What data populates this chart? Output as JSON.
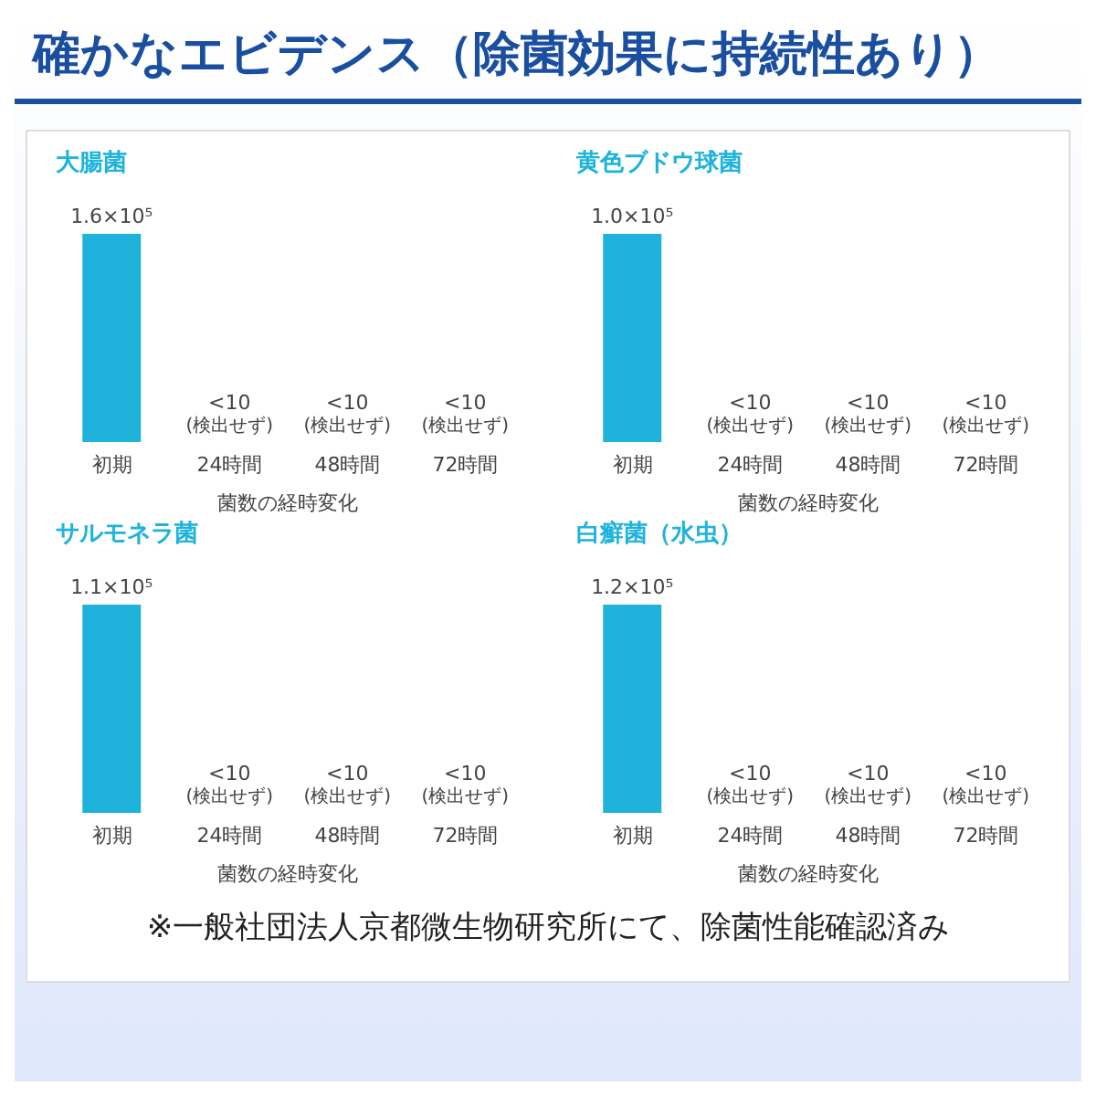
{
  "chart_data": [
    {
      "type": "other",
      "title": "確かなエビデンス（除菌効果に持続性あり）"
    },
    {
      "type": "bar",
      "title": "大腸菌",
      "xlabel": "菌数の経時変化",
      "categories": [
        "初期",
        "24時間",
        "48時間",
        "72時間"
      ],
      "values": [
        160000,
        10,
        10,
        10
      ],
      "value_labels": [
        "1.6×10⁵",
        "<10 (検出せず)",
        "<10 (検出せず)",
        "<10 (検出せず)"
      ],
      "color": "#1fb3dc",
      "grid": false,
      "legend": false
    },
    {
      "type": "bar",
      "title": "黄色ブドウ球菌",
      "xlabel": "菌数の経時変化",
      "categories": [
        "初期",
        "24時間",
        "48時間",
        "72時間"
      ],
      "values": [
        100000,
        10,
        10,
        10
      ],
      "value_labels": [
        "1.0×10⁵",
        "<10 (検出せず)",
        "<10 (検出せず)",
        "<10 (検出せず)"
      ],
      "color": "#1fb3dc",
      "grid": false,
      "legend": false
    },
    {
      "type": "bar",
      "title": "サルモネラ菌",
      "xlabel": "菌数の経時変化",
      "categories": [
        "初期",
        "24時間",
        "48時間",
        "72時間"
      ],
      "values": [
        110000,
        10,
        10,
        10
      ],
      "value_labels": [
        "1.1×10⁵",
        "<10 (検出せず)",
        "<10 (検出せず)",
        "<10 (検出せず)"
      ],
      "color": "#1fb3dc",
      "grid": false,
      "legend": false
    },
    {
      "type": "bar",
      "title": "白癬菌（水虫）",
      "xlabel": "菌数の経時変化",
      "categories": [
        "初期",
        "24時間",
        "48時間",
        "72時間"
      ],
      "values": [
        120000,
        10,
        10,
        10
      ],
      "value_labels": [
        "1.2×10⁵",
        "<10 (検出せず)",
        "<10 (検出せず)",
        "<10 (検出せず)"
      ],
      "color": "#1fb3dc",
      "grid": false,
      "legend": false
    },
    {
      "type": "other",
      "annotations": [
        "※一般社団法人京都微生物研究所にて、除菌性能確認済み"
      ]
    }
  ]
}
